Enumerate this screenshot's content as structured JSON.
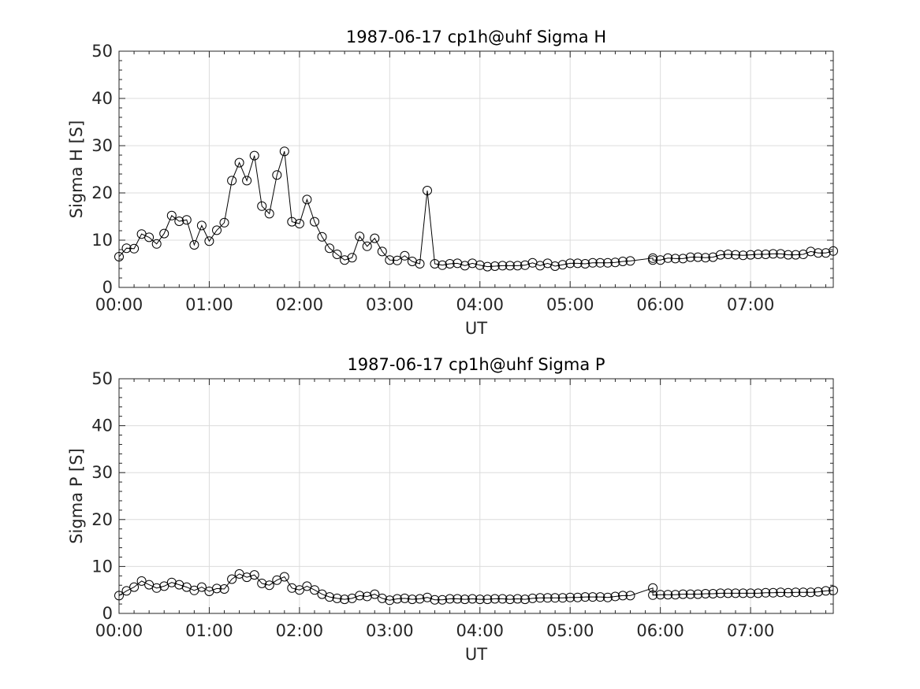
{
  "chart_data": [
    {
      "type": "line",
      "title": "1987-06-17  cp1h@uhf Sigma H",
      "xlabel": "UT",
      "ylabel": "Sigma H [S]",
      "xlim": [
        "00:00",
        "07:55"
      ],
      "ylim": [
        0,
        50
      ],
      "x_ticks": [
        "00:00",
        "01:00",
        "02:00",
        "03:00",
        "04:00",
        "05:00",
        "06:00",
        "07:00"
      ],
      "y_ticks": [
        0,
        10,
        20,
        30,
        40,
        50
      ],
      "grid": true,
      "marker": "circle",
      "series": [
        {
          "x": [
            "00:00",
            "00:05",
            "00:10",
            "00:15",
            "00:20",
            "00:25",
            "00:30",
            "00:35",
            "00:40",
            "00:45",
            "00:50",
            "00:55",
            "01:00",
            "01:05",
            "01:10",
            "01:15",
            "01:20",
            "01:25",
            "01:30",
            "01:35",
            "01:40",
            "01:45",
            "01:50",
            "01:55",
            "02:00",
            "02:05",
            "02:10",
            "02:15",
            "02:20",
            "02:25",
            "02:30",
            "02:35",
            "02:40",
            "02:45",
            "02:50",
            "02:55",
            "03:00",
            "03:05",
            "03:10",
            "03:15",
            "03:20",
            "03:25",
            "03:30",
            "03:35",
            "03:40",
            "03:45",
            "03:50",
            "03:55",
            "04:00",
            "04:05",
            "04:10",
            "04:15",
            "04:20",
            "04:25",
            "04:30",
            "04:35",
            "04:40",
            "04:45",
            "04:50",
            "04:55",
            "05:00",
            "05:05",
            "05:10",
            "05:15",
            "05:20",
            "05:25",
            "05:30",
            "05:35",
            "05:40",
            "05:55",
            "05:55",
            "06:00",
            "06:05",
            "06:10",
            "06:15",
            "06:20",
            "06:25",
            "06:30",
            "06:35",
            "06:40",
            "06:45",
            "06:50",
            "06:55",
            "07:00",
            "07:05",
            "07:10",
            "07:15",
            "07:20",
            "07:25",
            "07:30",
            "07:35",
            "07:40",
            "07:45",
            "07:50",
            "07:55"
          ],
          "values": [
            6.5,
            8.3,
            8.2,
            11.3,
            10.6,
            9.2,
            11.4,
            15.2,
            14.0,
            14.3,
            9.0,
            13.1,
            9.8,
            12.1,
            13.7,
            22.6,
            26.4,
            22.6,
            27.9,
            17.2,
            15.6,
            23.8,
            28.8,
            13.9,
            13.5,
            18.6,
            13.9,
            10.7,
            8.3,
            7.0,
            5.8,
            6.3,
            10.8,
            8.7,
            10.4,
            7.6,
            5.8,
            5.7,
            6.7,
            5.5,
            5.0,
            20.5,
            5.0,
            4.7,
            5.0,
            5.1,
            4.6,
            5.1,
            4.7,
            4.4,
            4.5,
            4.6,
            4.6,
            4.6,
            4.7,
            5.2,
            4.6,
            5.1,
            4.5,
            4.8,
            5.1,
            5.1,
            5.0,
            5.2,
            5.2,
            5.2,
            5.3,
            5.5,
            5.6,
            6.2,
            5.8,
            5.8,
            6.2,
            6.1,
            6.1,
            6.4,
            6.4,
            6.3,
            6.4,
            6.9,
            7.0,
            6.9,
            6.8,
            6.9,
            7.0,
            7.0,
            7.1,
            7.1,
            6.9,
            6.9,
            7.0,
            7.6,
            7.3,
            7.3,
            7.7
          ]
        }
      ]
    },
    {
      "type": "line",
      "title": "1987-06-17  cp1h@uhf Sigma P",
      "xlabel": "UT",
      "ylabel": "Sigma P [S]",
      "xlim": [
        "00:00",
        "07:55"
      ],
      "ylim": [
        0,
        50
      ],
      "x_ticks": [
        "00:00",
        "01:00",
        "02:00",
        "03:00",
        "04:00",
        "05:00",
        "06:00",
        "07:00"
      ],
      "y_ticks": [
        0,
        10,
        20,
        30,
        40,
        50
      ],
      "grid": true,
      "marker": "circle",
      "series": [
        {
          "x": [
            "00:00",
            "00:05",
            "00:10",
            "00:15",
            "00:20",
            "00:25",
            "00:30",
            "00:35",
            "00:40",
            "00:45",
            "00:50",
            "00:55",
            "01:00",
            "01:05",
            "01:10",
            "01:15",
            "01:20",
            "01:25",
            "01:30",
            "01:35",
            "01:40",
            "01:45",
            "01:50",
            "01:55",
            "02:00",
            "02:05",
            "02:10",
            "02:15",
            "02:20",
            "02:25",
            "02:30",
            "02:35",
            "02:40",
            "02:45",
            "02:50",
            "02:55",
            "03:00",
            "03:05",
            "03:10",
            "03:15",
            "03:20",
            "03:25",
            "03:30",
            "03:35",
            "03:40",
            "03:45",
            "03:50",
            "03:55",
            "04:00",
            "04:05",
            "04:10",
            "04:15",
            "04:20",
            "04:25",
            "04:30",
            "04:35",
            "04:40",
            "04:45",
            "04:50",
            "04:55",
            "05:00",
            "05:05",
            "05:10",
            "05:15",
            "05:20",
            "05:25",
            "05:30",
            "05:35",
            "05:40",
            "05:55",
            "05:55",
            "06:00",
            "06:05",
            "06:10",
            "06:15",
            "06:20",
            "06:25",
            "06:30",
            "06:35",
            "06:40",
            "06:45",
            "06:50",
            "06:55",
            "07:00",
            "07:05",
            "07:10",
            "07:15",
            "07:20",
            "07:25",
            "07:30",
            "07:35",
            "07:40",
            "07:45",
            "07:50",
            "07:55"
          ],
          "values": [
            3.8,
            4.8,
            5.6,
            6.9,
            6.1,
            5.4,
            5.8,
            6.6,
            6.1,
            5.6,
            4.9,
            5.6,
            4.7,
            5.3,
            5.2,
            7.3,
            8.4,
            7.7,
            8.2,
            6.4,
            6.0,
            7.1,
            7.8,
            5.4,
            5.0,
            5.8,
            5.0,
            4.1,
            3.5,
            3.2,
            3.0,
            3.2,
            3.8,
            3.6,
            4.1,
            3.2,
            2.8,
            3.1,
            3.2,
            3.0,
            3.1,
            3.4,
            2.9,
            2.9,
            3.1,
            3.1,
            3.0,
            3.1,
            3.0,
            3.0,
            3.1,
            3.1,
            3.0,
            3.1,
            3.0,
            3.2,
            3.3,
            3.3,
            3.3,
            3.3,
            3.4,
            3.4,
            3.5,
            3.5,
            3.5,
            3.4,
            3.6,
            3.8,
            3.8,
            5.4,
            3.9,
            4.0,
            4.0,
            4.0,
            4.1,
            4.1,
            4.1,
            4.2,
            4.2,
            4.3,
            4.3,
            4.3,
            4.3,
            4.3,
            4.3,
            4.4,
            4.4,
            4.5,
            4.4,
            4.5,
            4.5,
            4.5,
            4.6,
            4.8,
            4.9
          ]
        }
      ]
    }
  ]
}
